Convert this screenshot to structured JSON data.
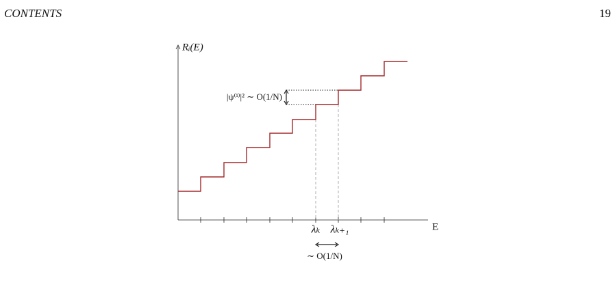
{
  "header": {
    "title": "CONTENTS",
    "page_number": "19"
  },
  "figure": {
    "y_axis_label": "Rᵢ(E)",
    "x_axis_label": "E",
    "x_markers": [
      "λₖ",
      "λₖ₊₁"
    ],
    "step_height_label": "|ψ⁽ⁱ⁾|² ∼ O(1/N)",
    "spacing_label": "∼ O(1/N)"
  }
}
